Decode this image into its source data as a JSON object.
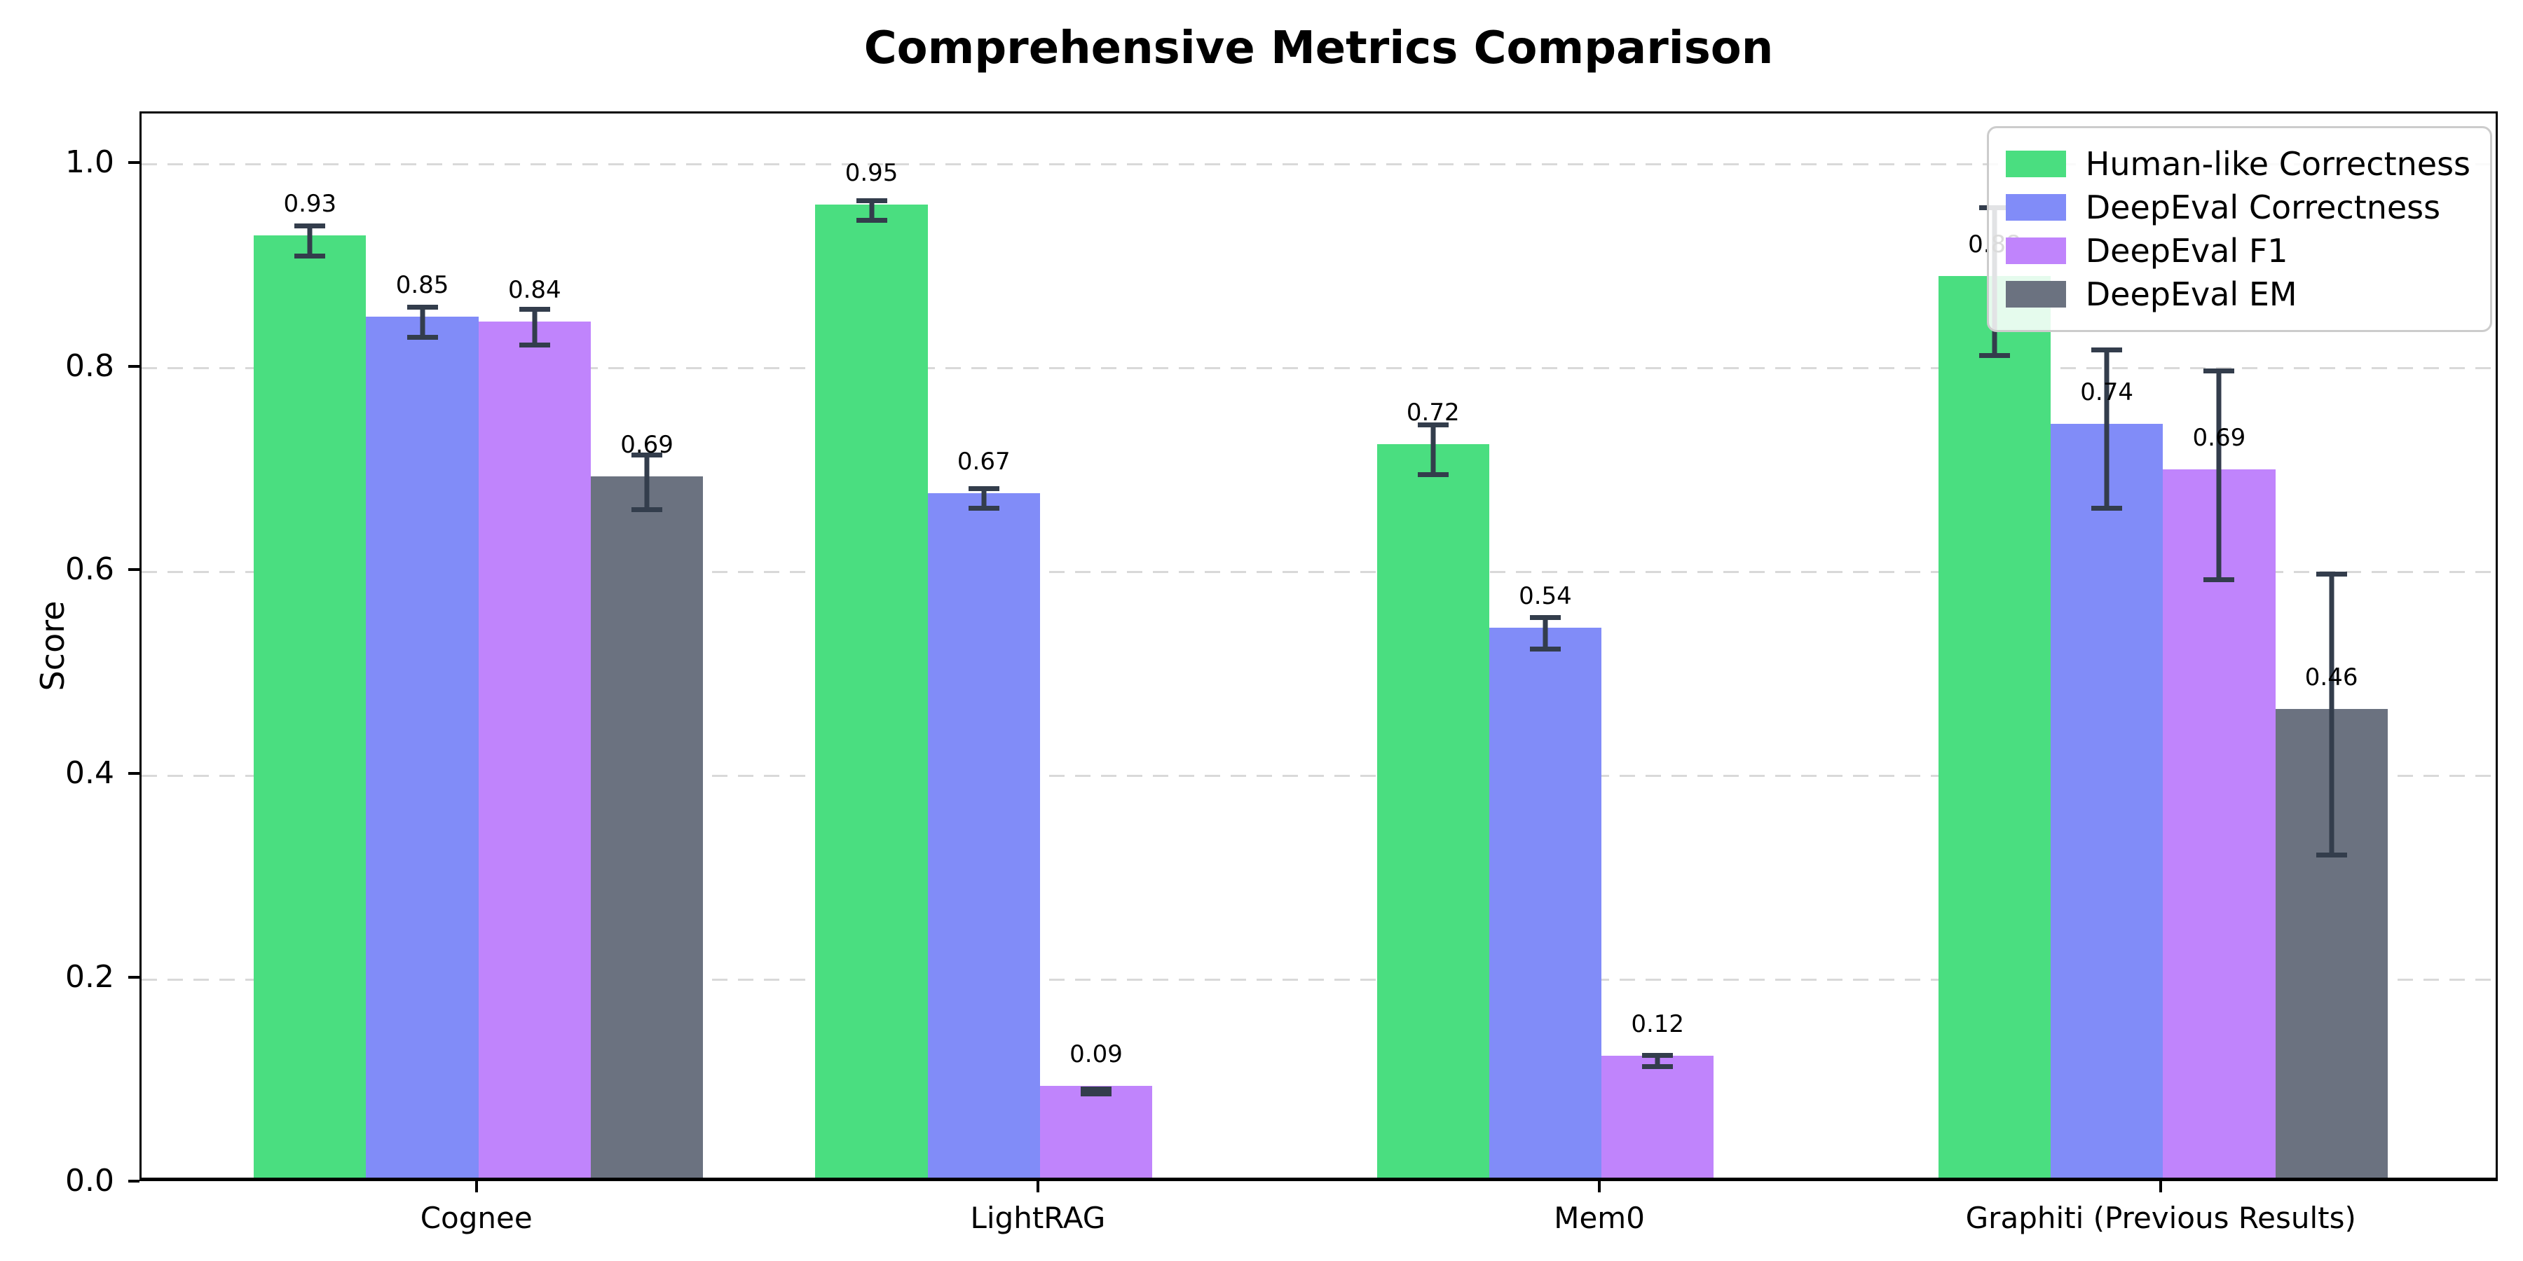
{
  "chart_data": {
    "type": "bar",
    "title": "Comprehensive Metrics Comparison",
    "ylabel": "Score",
    "xlabel": "",
    "categories": [
      "Cognee",
      "LightRAG",
      "Mem0",
      "Graphiti (Previous Results)"
    ],
    "series": [
      {
        "name": "Human-like Correctness",
        "color": "#4ade80",
        "values": [
          0.925,
          0.955,
          0.72,
          0.885
        ],
        "errors": [
          0.017,
          0.012,
          0.027,
          0.075
        ],
        "labels": [
          "0.93",
          "0.95",
          "0.72",
          "0.88"
        ]
      },
      {
        "name": "DeepEval Correctness",
        "color": "#818cf8",
        "values": [
          0.845,
          0.672,
          0.54,
          0.74
        ],
        "errors": [
          0.017,
          0.012,
          0.018,
          0.08
        ],
        "labels": [
          "0.85",
          "0.67",
          "0.54",
          "0.74"
        ]
      },
      {
        "name": "DeepEval F1",
        "color": "#c084fc",
        "values": [
          0.84,
          0.09,
          0.12,
          0.695
        ],
        "errors": [
          0.02,
          0.005,
          0.008,
          0.105
        ],
        "labels": [
          "0.84",
          "0.09",
          "0.12",
          "0.69"
        ]
      },
      {
        "name": "DeepEval EM",
        "color": "#6b7280",
        "values": [
          0.688,
          0.0,
          0.0,
          0.46
        ],
        "errors": [
          0.029,
          0.003,
          0.003,
          0.14
        ],
        "labels": [
          "0.69",
          "",
          "",
          "0.46"
        ]
      }
    ],
    "yticks": [
      "0.0",
      "0.2",
      "0.4",
      "0.6",
      "0.8",
      "1.0"
    ],
    "ylim": [
      0,
      1.05
    ],
    "grid": "horizontal-dashed",
    "legend_position": "upper-right",
    "colors": {
      "error_bar": "#333d4c",
      "grid_line": "#d9d9d9",
      "axis": "#000000",
      "background": "#ffffff",
      "legend_border": "#cccccc"
    }
  }
}
